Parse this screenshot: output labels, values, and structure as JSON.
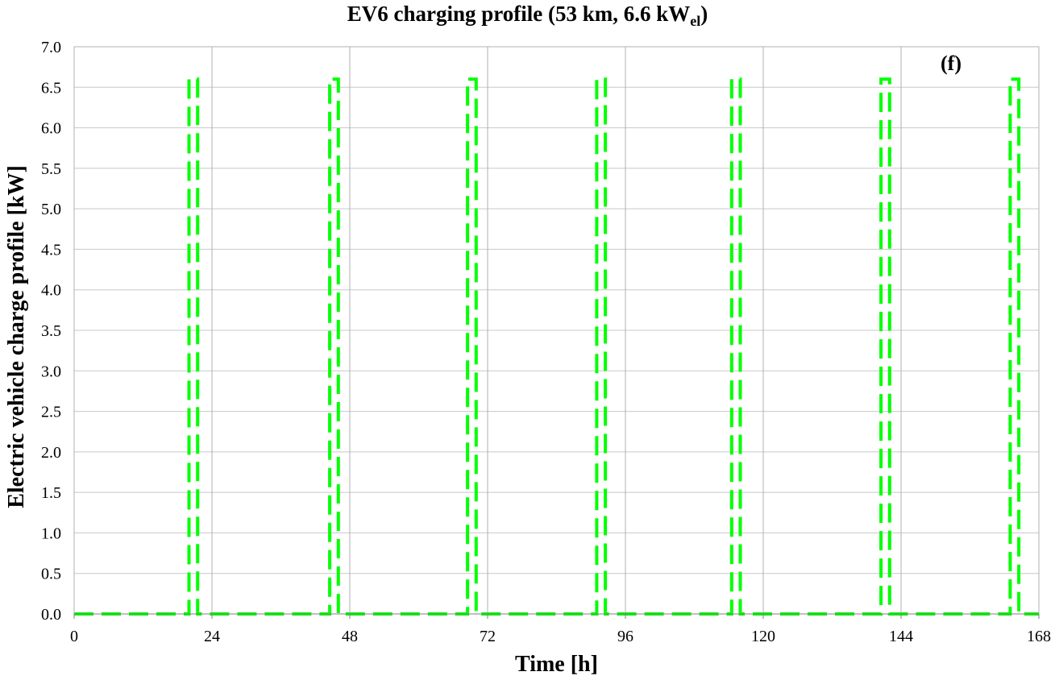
{
  "chart_data": {
    "type": "line",
    "title": {
      "main": "EV6 charging profile (53 km, 6.6 kW",
      "sub": "el",
      "suffix": ")"
    },
    "panel_label": "(f)",
    "xlabel": "Time [h]",
    "ylabel": "Electric vehicle charge profile [kW]",
    "xlim": [
      0,
      168
    ],
    "ylim": [
      0,
      7.0
    ],
    "xticks": [
      0,
      24,
      48,
      72,
      96,
      120,
      144,
      168
    ],
    "xtick_labels": [
      "0",
      "24",
      "48",
      "72",
      "96",
      "120",
      "144",
      "168"
    ],
    "yticks": [
      0,
      0.5,
      1.0,
      1.5,
      2.0,
      2.5,
      3.0,
      3.5,
      4.0,
      4.5,
      5.0,
      5.5,
      6.0,
      6.5,
      7.0
    ],
    "ytick_labels": [
      "0.0",
      "0.5",
      "1.0",
      "1.5",
      "2.0",
      "2.5",
      "3.0",
      "3.5",
      "4.0",
      "4.5",
      "5.0",
      "5.5",
      "6.0",
      "6.5",
      "7.0"
    ],
    "grid": true,
    "series": [
      {
        "line_color": "#00ff00",
        "line_style": "dashed",
        "x": [
          0,
          20,
          20,
          21.5,
          21.5,
          44.5,
          44.5,
          46,
          46,
          68.5,
          68.5,
          70,
          70,
          91,
          91,
          92.5,
          92.5,
          114.5,
          114.5,
          116,
          116,
          140.5,
          140.5,
          142,
          142,
          163,
          163,
          164.5,
          164.5,
          168
        ],
        "y": [
          0,
          0,
          6.6,
          6.6,
          0,
          0,
          6.6,
          6.6,
          0,
          0,
          6.6,
          6.6,
          0,
          0,
          6.6,
          6.6,
          0,
          0,
          6.6,
          6.6,
          0,
          0,
          6.6,
          6.6,
          0,
          0,
          6.6,
          6.6,
          0,
          0
        ]
      }
    ]
  }
}
